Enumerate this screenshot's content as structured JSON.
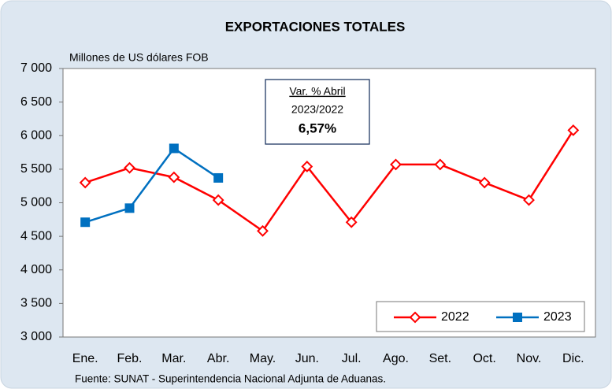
{
  "chart_data": {
    "type": "line",
    "title": "EXPORTACIONES TOTALES",
    "ylabel": "Millones de US dólares FOB",
    "source": "Fuente: SUNAT - Superintendencia Nacional Adjunta de Aduanas.",
    "annotation": {
      "heading": "Var. % Abril",
      "period": "2023/2022",
      "value": "6,57%"
    },
    "categories": [
      "Ene.",
      "Feb.",
      "Mar.",
      "Abr.",
      "May.",
      "Jun.",
      "Jul.",
      "Ago.",
      "Set.",
      "Oct.",
      "Nov.",
      "Dic."
    ],
    "series": [
      {
        "name": "2022",
        "color": "#ff0000",
        "marker": "diamond",
        "values": [
          5300,
          5520,
          5380,
          5040,
          4580,
          5540,
          4710,
          5570,
          5570,
          5300,
          5040,
          6080
        ]
      },
      {
        "name": "2023",
        "color": "#0070c0",
        "marker": "square",
        "values": [
          4710,
          4920,
          5810,
          5370,
          null,
          null,
          null,
          null,
          null,
          null,
          null,
          null
        ]
      }
    ],
    "ylim": [
      3000,
      7000
    ],
    "yticks": [
      {
        "value": 3000,
        "label": "3 000"
      },
      {
        "value": 3500,
        "label": "3 500"
      },
      {
        "value": 4000,
        "label": "4 000"
      },
      {
        "value": 4500,
        "label": "4 500"
      },
      {
        "value": 5000,
        "label": "5 000"
      },
      {
        "value": 5500,
        "label": "5 500"
      },
      {
        "value": 6000,
        "label": "6 000"
      },
      {
        "value": 6500,
        "label": "6 500"
      },
      {
        "value": 7000,
        "label": "7 000"
      }
    ],
    "legend": "lower right"
  }
}
